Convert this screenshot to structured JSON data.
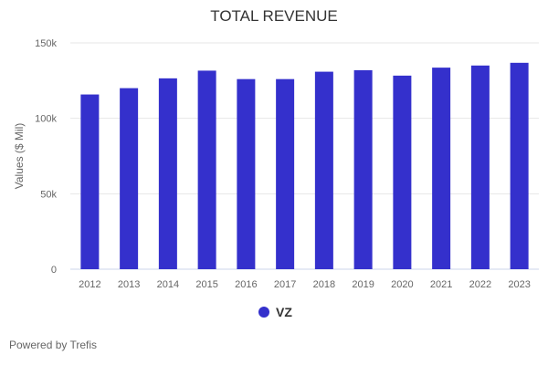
{
  "chart_data": {
    "type": "bar",
    "title": "TOTAL REVENUE",
    "xlabel": "",
    "ylabel": "Values ($ Mil)",
    "categories": [
      "2012",
      "2013",
      "2014",
      "2015",
      "2016",
      "2017",
      "2018",
      "2019",
      "2020",
      "2021",
      "2022",
      "2023"
    ],
    "series": [
      {
        "name": "VZ",
        "color": "#3430cc",
        "values": [
          115800,
          120000,
          126500,
          131600,
          126000,
          126000,
          130900,
          131900,
          128300,
          133600,
          135000,
          136800
        ]
      }
    ],
    "ylim": [
      0,
      150000
    ],
    "yticks": [
      0,
      50000,
      100000,
      150000
    ],
    "ytick_labels": [
      "0",
      "50k",
      "100k",
      "150k"
    ],
    "grid": true,
    "legend_position": "bottom-center"
  },
  "footer": {
    "credit": "Powered by Trefis"
  }
}
